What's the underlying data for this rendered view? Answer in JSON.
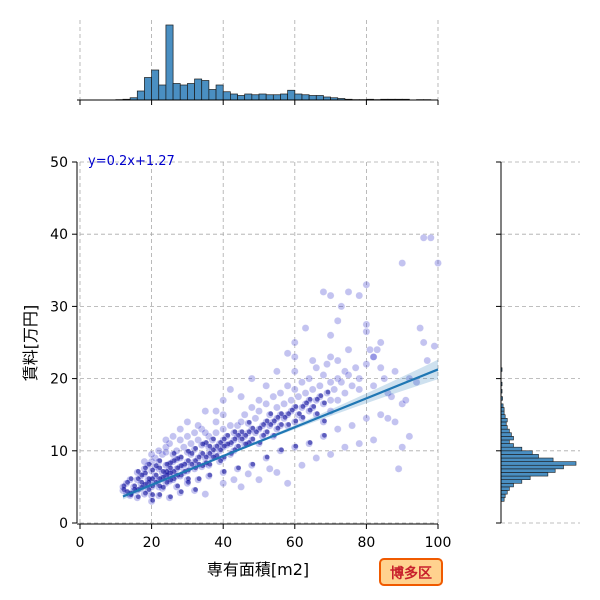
{
  "chart_data": {
    "type": "scatter",
    "title": "",
    "xlabel": "専有面積[m2]",
    "ylabel": "賃料[万円]",
    "xlim": [
      0,
      100
    ],
    "ylim": [
      0,
      50
    ],
    "x_ticks": [
      "0",
      "20",
      "40",
      "60",
      "80",
      "100"
    ],
    "y_ticks": [
      "0",
      "10",
      "20",
      "30",
      "40",
      "50"
    ],
    "grid": true,
    "equation_label": "y=0.2x+1.27",
    "badge_label": "博多区",
    "regression": {
      "slope": 0.2,
      "intercept": 1.27,
      "x_range": [
        12,
        100
      ]
    },
    "x_marginal_hist": {
      "bin_width": 2,
      "bins": [
        {
          "x": 10,
          "h": 0.5
        },
        {
          "x": 12,
          "h": 1
        },
        {
          "x": 14,
          "h": 3
        },
        {
          "x": 16,
          "h": 12
        },
        {
          "x": 18,
          "h": 30
        },
        {
          "x": 20,
          "h": 40
        },
        {
          "x": 22,
          "h": 20
        },
        {
          "x": 24,
          "h": 100
        },
        {
          "x": 26,
          "h": 22
        },
        {
          "x": 28,
          "h": 20
        },
        {
          "x": 30,
          "h": 22
        },
        {
          "x": 32,
          "h": 28
        },
        {
          "x": 34,
          "h": 26
        },
        {
          "x": 36,
          "h": 14
        },
        {
          "x": 38,
          "h": 20
        },
        {
          "x": 40,
          "h": 11
        },
        {
          "x": 42,
          "h": 8
        },
        {
          "x": 44,
          "h": 6
        },
        {
          "x": 46,
          "h": 8
        },
        {
          "x": 48,
          "h": 7
        },
        {
          "x": 50,
          "h": 8
        },
        {
          "x": 52,
          "h": 7
        },
        {
          "x": 54,
          "h": 7
        },
        {
          "x": 56,
          "h": 8
        },
        {
          "x": 58,
          "h": 13
        },
        {
          "x": 60,
          "h": 8
        },
        {
          "x": 62,
          "h": 7
        },
        {
          "x": 64,
          "h": 6
        },
        {
          "x": 66,
          "h": 6
        },
        {
          "x": 68,
          "h": 4
        },
        {
          "x": 70,
          "h": 3
        },
        {
          "x": 72,
          "h": 2
        },
        {
          "x": 74,
          "h": 1
        },
        {
          "x": 76,
          "h": 0.5
        },
        {
          "x": 78,
          "h": 0.5
        },
        {
          "x": 80,
          "h": 1
        },
        {
          "x": 82,
          "h": 0.5
        },
        {
          "x": 84,
          "h": 1
        },
        {
          "x": 86,
          "h": 1
        },
        {
          "x": 88,
          "h": 1
        },
        {
          "x": 90,
          "h": 1
        },
        {
          "x": 94,
          "h": 0.5
        },
        {
          "x": 96,
          "h": 0.5
        }
      ]
    },
    "y_marginal_hist": {
      "bin_width": 0.5,
      "bins": [
        {
          "y": 3.0,
          "w": 3
        },
        {
          "y": 3.5,
          "w": 4
        },
        {
          "y": 4.0,
          "w": 6
        },
        {
          "y": 4.5,
          "w": 8
        },
        {
          "y": 5.0,
          "w": 12
        },
        {
          "y": 5.5,
          "w": 20
        },
        {
          "y": 6.0,
          "w": 28
        },
        {
          "y": 6.5,
          "w": 45
        },
        {
          "y": 7.0,
          "w": 52
        },
        {
          "y": 7.5,
          "w": 60
        },
        {
          "y": 8.0,
          "w": 72
        },
        {
          "y": 8.5,
          "w": 50
        },
        {
          "y": 9.0,
          "w": 36
        },
        {
          "y": 9.5,
          "w": 30
        },
        {
          "y": 10.0,
          "w": 20
        },
        {
          "y": 10.5,
          "w": 12
        },
        {
          "y": 11.0,
          "w": 8
        },
        {
          "y": 11.5,
          "w": 12
        },
        {
          "y": 12.0,
          "w": 10
        },
        {
          "y": 12.5,
          "w": 8
        },
        {
          "y": 13.0,
          "w": 6
        },
        {
          "y": 13.5,
          "w": 5
        },
        {
          "y": 14.0,
          "w": 6
        },
        {
          "y": 14.5,
          "w": 4
        },
        {
          "y": 15.0,
          "w": 3
        },
        {
          "y": 15.5,
          "w": 3
        },
        {
          "y": 16.0,
          "w": 2
        },
        {
          "y": 17.0,
          "w": 1.5
        },
        {
          "y": 18.0,
          "w": 1
        },
        {
          "y": 19.0,
          "w": 1
        },
        {
          "y": 21.0,
          "w": 1
        }
      ]
    },
    "points": [
      [
        12,
        4.5
      ],
      [
        12,
        5.0
      ],
      [
        13,
        4.2
      ],
      [
        13,
        5.5
      ],
      [
        14,
        4.0
      ],
      [
        14,
        3.8
      ],
      [
        15,
        5.0
      ],
      [
        15,
        4.5
      ],
      [
        16,
        4.5
      ],
      [
        16,
        6.0
      ],
      [
        16,
        3.5
      ],
      [
        17,
        5.5
      ],
      [
        17,
        4.8
      ],
      [
        17,
        6.5
      ],
      [
        18,
        5.2
      ],
      [
        18,
        6.8
      ],
      [
        18,
        4.0
      ],
      [
        18,
        7.5
      ],
      [
        19,
        5.5
      ],
      [
        19,
        6.0
      ],
      [
        19,
        8.0
      ],
      [
        19,
        4.5
      ],
      [
        20,
        6.0
      ],
      [
        20,
        7.2
      ],
      [
        20,
        5.0
      ],
      [
        20,
        8.5
      ],
      [
        20,
        3.8
      ],
      [
        21,
        6.5
      ],
      [
        21,
        7.8
      ],
      [
        21,
        5.5
      ],
      [
        21,
        9.0
      ],
      [
        22,
        6.0
      ],
      [
        22,
        7.5
      ],
      [
        22,
        8.5
      ],
      [
        22,
        5.0
      ],
      [
        23,
        7.0
      ],
      [
        23,
        6.2
      ],
      [
        23,
        9.5
      ],
      [
        23,
        4.8
      ],
      [
        24,
        6.5
      ],
      [
        24,
        7.0
      ],
      [
        24,
        8.0
      ],
      [
        24,
        9.8
      ],
      [
        24,
        5.5
      ],
      [
        24,
        10.5
      ],
      [
        25,
        6.8
      ],
      [
        25,
        7.5
      ],
      [
        25,
        8.2
      ],
      [
        25,
        5.8
      ],
      [
        25,
        11.0
      ],
      [
        26,
        7.0
      ],
      [
        26,
        8.5
      ],
      [
        26,
        6.0
      ],
      [
        26,
        9.5
      ],
      [
        27,
        7.5
      ],
      [
        27,
        6.5
      ],
      [
        27,
        10.0
      ],
      [
        27,
        8.8
      ],
      [
        28,
        7.8
      ],
      [
        28,
        9.0
      ],
      [
        28,
        6.5
      ],
      [
        28,
        11.5
      ],
      [
        29,
        8.0
      ],
      [
        29,
        7.0
      ],
      [
        29,
        10.5
      ],
      [
        30,
        8.5
      ],
      [
        30,
        7.2
      ],
      [
        30,
        9.8
      ],
      [
        30,
        12.0
      ],
      [
        30,
        6.0
      ],
      [
        31,
        8.0
      ],
      [
        31,
        9.5
      ],
      [
        31,
        11.0
      ],
      [
        32,
        8.5
      ],
      [
        32,
        7.5
      ],
      [
        32,
        10.2
      ],
      [
        32,
        12.5
      ],
      [
        33,
        9.0
      ],
      [
        33,
        8.0
      ],
      [
        33,
        11.5
      ],
      [
        34,
        9.5
      ],
      [
        34,
        7.8
      ],
      [
        34,
        10.8
      ],
      [
        34,
        13.0
      ],
      [
        35,
        9.0
      ],
      [
        35,
        8.2
      ],
      [
        35,
        11.0
      ],
      [
        35,
        15.5
      ],
      [
        36,
        9.5
      ],
      [
        36,
        10.5
      ],
      [
        36,
        8.0
      ],
      [
        36,
        12.0
      ],
      [
        37,
        10.0
      ],
      [
        37,
        9.0
      ],
      [
        37,
        11.5
      ],
      [
        38,
        10.5
      ],
      [
        38,
        9.2
      ],
      [
        38,
        12.5
      ],
      [
        38,
        14.0
      ],
      [
        39,
        10.0
      ],
      [
        39,
        11.0
      ],
      [
        39,
        8.5
      ],
      [
        40,
        10.5
      ],
      [
        40,
        11.5
      ],
      [
        40,
        9.0
      ],
      [
        40,
        13.0
      ],
      [
        40,
        15.0
      ],
      [
        41,
        10.8
      ],
      [
        41,
        12.0
      ],
      [
        42,
        11.0
      ],
      [
        42,
        9.5
      ],
      [
        42,
        13.5
      ],
      [
        43,
        11.5
      ],
      [
        43,
        12.5
      ],
      [
        43,
        10.0
      ],
      [
        44,
        12.0
      ],
      [
        44,
        13.5
      ],
      [
        44,
        10.5
      ],
      [
        45,
        11.5
      ],
      [
        45,
        14.0
      ],
      [
        45,
        12.5
      ],
      [
        46,
        12.0
      ],
      [
        46,
        10.8
      ],
      [
        46,
        15.0
      ],
      [
        47,
        12.5
      ],
      [
        47,
        13.8
      ],
      [
        47,
        11.0
      ],
      [
        48,
        13.0
      ],
      [
        48,
        11.5
      ],
      [
        48,
        16.0
      ],
      [
        49,
        12.5
      ],
      [
        49,
        14.5
      ],
      [
        50,
        13.0
      ],
      [
        50,
        11.0
      ],
      [
        50,
        15.5
      ],
      [
        50,
        17.0
      ],
      [
        51,
        13.5
      ],
      [
        51,
        12.0
      ],
      [
        52,
        14.0
      ],
      [
        52,
        12.5
      ],
      [
        52,
        16.5
      ],
      [
        53,
        13.5
      ],
      [
        53,
        15.0
      ],
      [
        54,
        14.0
      ],
      [
        54,
        12.0
      ],
      [
        54,
        17.5
      ],
      [
        55,
        14.5
      ],
      [
        55,
        16.0
      ],
      [
        55,
        13.0
      ],
      [
        56,
        15.0
      ],
      [
        56,
        13.5
      ],
      [
        56,
        18.0
      ],
      [
        57,
        14.5
      ],
      [
        57,
        16.5
      ],
      [
        58,
        15.0
      ],
      [
        58,
        13.5
      ],
      [
        58,
        19.0
      ],
      [
        59,
        15.5
      ],
      [
        59,
        17.0
      ],
      [
        60,
        14.0
      ],
      [
        60,
        16.0
      ],
      [
        60,
        18.5
      ],
      [
        60,
        21.0
      ],
      [
        60,
        23.0
      ],
      [
        61,
        15.0
      ],
      [
        61,
        17.5
      ],
      [
        62,
        16.0
      ],
      [
        62,
        14.5
      ],
      [
        62,
        19.5
      ],
      [
        63,
        16.5
      ],
      [
        63,
        18.0
      ],
      [
        64,
        15.5
      ],
      [
        64,
        17.0
      ],
      [
        64,
        20.0
      ],
      [
        65,
        16.0
      ],
      [
        65,
        18.5
      ],
      [
        66,
        17.0
      ],
      [
        66,
        15.0
      ],
      [
        66,
        21.5
      ],
      [
        67,
        17.5
      ],
      [
        67,
        19.0
      ],
      [
        68,
        16.5
      ],
      [
        68,
        20.5
      ],
      [
        68,
        14.0
      ],
      [
        69,
        18.0
      ],
      [
        69,
        22.0
      ],
      [
        70,
        17.0
      ],
      [
        70,
        19.5
      ],
      [
        70,
        23.0
      ],
      [
        70,
        15.5
      ],
      [
        71,
        18.5
      ],
      [
        72,
        20.0
      ],
      [
        72,
        17.0
      ],
      [
        72,
        22.5
      ],
      [
        73,
        19.5
      ],
      [
        74,
        18.0
      ],
      [
        74,
        21.0
      ],
      [
        75,
        20.5
      ],
      [
        75,
        24.0
      ],
      [
        76,
        19.0
      ],
      [
        77,
        21.5
      ],
      [
        78,
        20.0
      ],
      [
        78,
        18.5
      ],
      [
        80,
        22.0
      ],
      [
        80,
        26.5
      ],
      [
        80,
        27.5
      ],
      [
        81,
        24.0
      ],
      [
        82,
        23.0
      ],
      [
        82,
        19.0
      ],
      [
        84,
        21.5
      ],
      [
        84,
        25.0
      ],
      [
        85,
        20.0
      ],
      [
        86,
        18.0
      ],
      [
        87,
        17.5
      ],
      [
        88,
        21.0
      ],
      [
        89,
        7.5
      ],
      [
        90,
        16.5
      ],
      [
        91,
        17.0
      ],
      [
        92,
        20.0
      ],
      [
        94,
        19.5
      ],
      [
        95,
        27.0
      ],
      [
        96,
        25.0
      ],
      [
        97,
        22.5
      ],
      [
        98,
        39.5
      ],
      [
        99,
        24.5
      ],
      [
        100,
        36.0
      ],
      [
        68,
        32.0
      ],
      [
        70,
        31.5
      ],
      [
        72,
        28.0
      ],
      [
        73,
        30.0
      ],
      [
        75,
        32.0
      ],
      [
        78,
        31.5
      ],
      [
        80,
        33.0
      ],
      [
        90,
        36.0
      ],
      [
        96,
        39.5
      ],
      [
        83,
        24.0
      ],
      [
        82,
        23.0
      ],
      [
        63,
        27.0
      ],
      [
        60,
        25.0
      ],
      [
        48,
        20.0
      ],
      [
        45,
        17.5
      ],
      [
        42,
        18.5
      ],
      [
        40,
        17.0
      ],
      [
        38,
        15.5
      ],
      [
        55,
        21.0
      ],
      [
        58,
        23.5
      ],
      [
        52,
        19.0
      ],
      [
        65,
        22.5
      ],
      [
        70,
        26.0
      ],
      [
        35,
        12.5
      ],
      [
        33,
        13.5
      ],
      [
        30,
        14.0
      ],
      [
        28,
        13.0
      ],
      [
        26,
        12.0
      ],
      [
        24,
        11.5
      ],
      [
        22,
        10.0
      ],
      [
        20,
        9.5
      ],
      [
        18,
        8.5
      ],
      [
        16,
        7.0
      ],
      [
        14,
        6.0
      ],
      [
        27,
        5.0
      ],
      [
        30,
        5.5
      ],
      [
        33,
        6.0
      ],
      [
        36,
        6.5
      ],
      [
        40,
        7.0
      ],
      [
        44,
        7.5
      ],
      [
        48,
        8.0
      ],
      [
        52,
        9.0
      ],
      [
        56,
        10.0
      ],
      [
        60,
        10.5
      ],
      [
        64,
        11.0
      ],
      [
        68,
        12.0
      ],
      [
        72,
        13.0
      ],
      [
        76,
        13.5
      ],
      [
        80,
        14.5
      ],
      [
        84,
        15.0
      ],
      [
        88,
        14.0
      ],
      [
        92,
        12.0
      ],
      [
        90,
        10.5
      ],
      [
        86,
        14.5
      ],
      [
        35,
        4.0
      ],
      [
        32,
        4.5
      ],
      [
        28,
        4.2
      ],
      [
        25,
        3.5
      ],
      [
        22,
        3.8
      ],
      [
        20,
        3.0
      ],
      [
        45,
        5.0
      ],
      [
        50,
        6.0
      ],
      [
        55,
        7.0
      ],
      [
        62,
        8.0
      ],
      [
        66,
        9.0
      ],
      [
        70,
        9.5
      ],
      [
        74,
        10.5
      ],
      [
        78,
        11.0
      ],
      [
        82,
        11.5
      ],
      [
        58,
        5.5
      ],
      [
        40,
        5.5
      ],
      [
        43,
        6.0
      ],
      [
        47,
        6.8
      ],
      [
        53,
        7.5
      ]
    ]
  }
}
